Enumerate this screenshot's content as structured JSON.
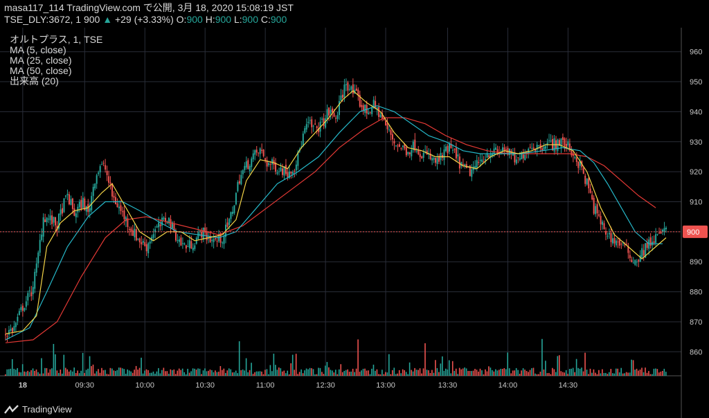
{
  "header": {
    "line1": "masa117_114 TradingView.com で公開, 3月 18, 2020 15:08:19 JST",
    "symbol": "TSE_DLY:3672, 1",
    "last": "900",
    "arrow": "▲",
    "change": "+29 (+3.33%)",
    "o_label": "O:",
    "o": "900",
    "h_label": "H:",
    "h": "900",
    "l_label": "L:",
    "l": "900",
    "c_label": "C:",
    "c": "900"
  },
  "legend": [
    "オルトプラス, 1, TSE",
    "MA (5, close)",
    "MA (25, close)",
    "MA (50, close)",
    "出来高 (20)"
  ],
  "brand": {
    "label": "TradingView"
  },
  "colors": {
    "up": "#26a69a",
    "down": "#ef5350",
    "ma5": "#f5d547",
    "ma25": "#26b8c9",
    "ma50": "#e53935",
    "grid": "#2a2e39",
    "price_line": "#ef5350"
  },
  "chart_data": {
    "type": "candlestick",
    "ylim": [
      852,
      968
    ],
    "y_ticks": [
      860,
      870,
      880,
      890,
      900,
      910,
      920,
      930,
      940,
      950,
      960
    ],
    "last_price_label": "900",
    "x_ticks": [
      "18",
      "09:30",
      "10:00",
      "10:30",
      "11:00",
      "12:30",
      "13:00",
      "13:30",
      "14:00",
      "14:30"
    ],
    "close_path": [
      [
        0,
        866
      ],
      [
        5,
        868
      ],
      [
        10,
        875
      ],
      [
        15,
        880
      ],
      [
        18,
        888
      ],
      [
        22,
        905
      ],
      [
        26,
        904
      ],
      [
        30,
        902
      ],
      [
        33,
        908
      ],
      [
        36,
        912
      ],
      [
        40,
        906
      ],
      [
        45,
        910
      ],
      [
        48,
        906
      ],
      [
        52,
        918
      ],
      [
        55,
        922
      ],
      [
        58,
        921
      ],
      [
        62,
        912
      ],
      [
        66,
        908
      ],
      [
        70,
        904
      ],
      [
        74,
        900
      ],
      [
        78,
        897
      ],
      [
        82,
        895
      ],
      [
        86,
        900
      ],
      [
        90,
        902
      ],
      [
        94,
        905
      ],
      [
        98,
        900
      ],
      [
        102,
        896
      ],
      [
        106,
        895
      ],
      [
        110,
        897
      ],
      [
        114,
        900
      ],
      [
        118,
        898
      ],
      [
        122,
        897
      ],
      [
        126,
        898
      ],
      [
        130,
        903
      ],
      [
        133,
        910
      ],
      [
        136,
        918
      ],
      [
        140,
        922
      ],
      [
        144,
        925
      ],
      [
        148,
        927
      ],
      [
        152,
        923
      ],
      [
        156,
        922
      ],
      [
        160,
        921
      ],
      [
        164,
        920
      ],
      [
        168,
        922
      ],
      [
        170,
        925
      ],
      [
        173,
        932
      ],
      [
        176,
        936
      ],
      [
        180,
        934
      ],
      [
        184,
        936
      ],
      [
        188,
        940
      ],
      [
        192,
        938
      ],
      [
        195,
        944
      ],
      [
        198,
        950
      ],
      [
        201,
        947
      ],
      [
        204,
        945
      ],
      [
        207,
        942
      ],
      [
        210,
        940
      ],
      [
        214,
        942
      ],
      [
        218,
        939
      ],
      [
        222,
        934
      ],
      [
        226,
        930
      ],
      [
        230,
        928
      ],
      [
        234,
        927
      ],
      [
        238,
        929
      ],
      [
        242,
        926
      ],
      [
        246,
        925
      ],
      [
        250,
        923
      ],
      [
        254,
        925
      ],
      [
        258,
        928
      ],
      [
        262,
        925
      ],
      [
        266,
        921
      ],
      [
        270,
        920
      ],
      [
        274,
        922
      ],
      [
        278,
        925
      ],
      [
        282,
        927
      ],
      [
        286,
        926
      ],
      [
        290,
        928
      ],
      [
        294,
        925
      ],
      [
        298,
        923
      ],
      [
        302,
        927
      ],
      [
        306,
        929
      ],
      [
        310,
        928
      ],
      [
        314,
        930
      ],
      [
        318,
        929
      ],
      [
        322,
        930
      ],
      [
        326,
        929
      ],
      [
        330,
        926
      ],
      [
        334,
        922
      ],
      [
        338,
        916
      ],
      [
        342,
        908
      ],
      [
        346,
        903
      ],
      [
        350,
        899
      ],
      [
        354,
        897
      ],
      [
        358,
        896
      ],
      [
        362,
        893
      ],
      [
        366,
        890
      ],
      [
        370,
        893
      ],
      [
        374,
        896
      ],
      [
        378,
        898
      ],
      [
        382,
        900
      ]
    ],
    "ma5_path": [
      [
        0,
        866
      ],
      [
        10,
        867
      ],
      [
        18,
        872
      ],
      [
        24,
        895
      ],
      [
        32,
        903
      ],
      [
        40,
        907
      ],
      [
        48,
        908
      ],
      [
        56,
        913
      ],
      [
        62,
        916
      ],
      [
        70,
        908
      ],
      [
        78,
        900
      ],
      [
        86,
        897
      ],
      [
        94,
        900
      ],
      [
        102,
        900
      ],
      [
        110,
        897
      ],
      [
        118,
        898
      ],
      [
        126,
        899
      ],
      [
        134,
        904
      ],
      [
        140,
        917
      ],
      [
        148,
        924
      ],
      [
        156,
        923
      ],
      [
        164,
        921
      ],
      [
        172,
        928
      ],
      [
        180,
        933
      ],
      [
        188,
        938
      ],
      [
        196,
        944
      ],
      [
        202,
        947
      ],
      [
        210,
        943
      ],
      [
        218,
        940
      ],
      [
        226,
        933
      ],
      [
        234,
        928
      ],
      [
        242,
        927
      ],
      [
        250,
        925
      ],
      [
        258,
        925
      ],
      [
        266,
        922
      ],
      [
        274,
        921
      ],
      [
        282,
        925
      ],
      [
        290,
        927
      ],
      [
        298,
        926
      ],
      [
        306,
        927
      ],
      [
        314,
        929
      ],
      [
        322,
        929
      ],
      [
        330,
        927
      ],
      [
        338,
        920
      ],
      [
        346,
        908
      ],
      [
        354,
        899
      ],
      [
        362,
        895
      ],
      [
        370,
        891
      ],
      [
        378,
        895
      ],
      [
        384,
        898
      ]
    ],
    "ma25_path": [
      [
        0,
        864
      ],
      [
        14,
        868
      ],
      [
        24,
        880
      ],
      [
        36,
        895
      ],
      [
        48,
        905
      ],
      [
        58,
        910
      ],
      [
        68,
        910
      ],
      [
        78,
        907
      ],
      [
        90,
        903
      ],
      [
        100,
        900
      ],
      [
        112,
        899
      ],
      [
        124,
        898
      ],
      [
        134,
        900
      ],
      [
        146,
        908
      ],
      [
        158,
        916
      ],
      [
        170,
        920
      ],
      [
        182,
        925
      ],
      [
        194,
        933
      ],
      [
        206,
        940
      ],
      [
        216,
        942
      ],
      [
        226,
        940
      ],
      [
        236,
        936
      ],
      [
        246,
        932
      ],
      [
        256,
        930
      ],
      [
        266,
        927
      ],
      [
        276,
        926
      ],
      [
        288,
        926
      ],
      [
        300,
        926
      ],
      [
        312,
        927
      ],
      [
        324,
        928
      ],
      [
        334,
        927
      ],
      [
        342,
        923
      ],
      [
        350,
        916
      ],
      [
        358,
        908
      ],
      [
        366,
        900
      ],
      [
        374,
        896
      ],
      [
        382,
        896
      ]
    ],
    "ma50_path": [
      [
        0,
        863
      ],
      [
        16,
        864
      ],
      [
        30,
        870
      ],
      [
        44,
        885
      ],
      [
        58,
        898
      ],
      [
        70,
        904
      ],
      [
        82,
        905
      ],
      [
        96,
        903
      ],
      [
        110,
        901
      ],
      [
        124,
        899
      ],
      [
        138,
        902
      ],
      [
        152,
        908
      ],
      [
        166,
        914
      ],
      [
        180,
        920
      ],
      [
        194,
        928
      ],
      [
        208,
        934
      ],
      [
        220,
        938
      ],
      [
        232,
        938
      ],
      [
        244,
        936
      ],
      [
        256,
        932
      ],
      [
        268,
        929
      ],
      [
        280,
        927
      ],
      [
        292,
        926
      ],
      [
        304,
        926
      ],
      [
        316,
        926
      ],
      [
        328,
        926
      ],
      [
        338,
        925
      ],
      [
        348,
        922
      ],
      [
        358,
        917
      ],
      [
        368,
        912
      ],
      [
        378,
        908
      ]
    ]
  }
}
